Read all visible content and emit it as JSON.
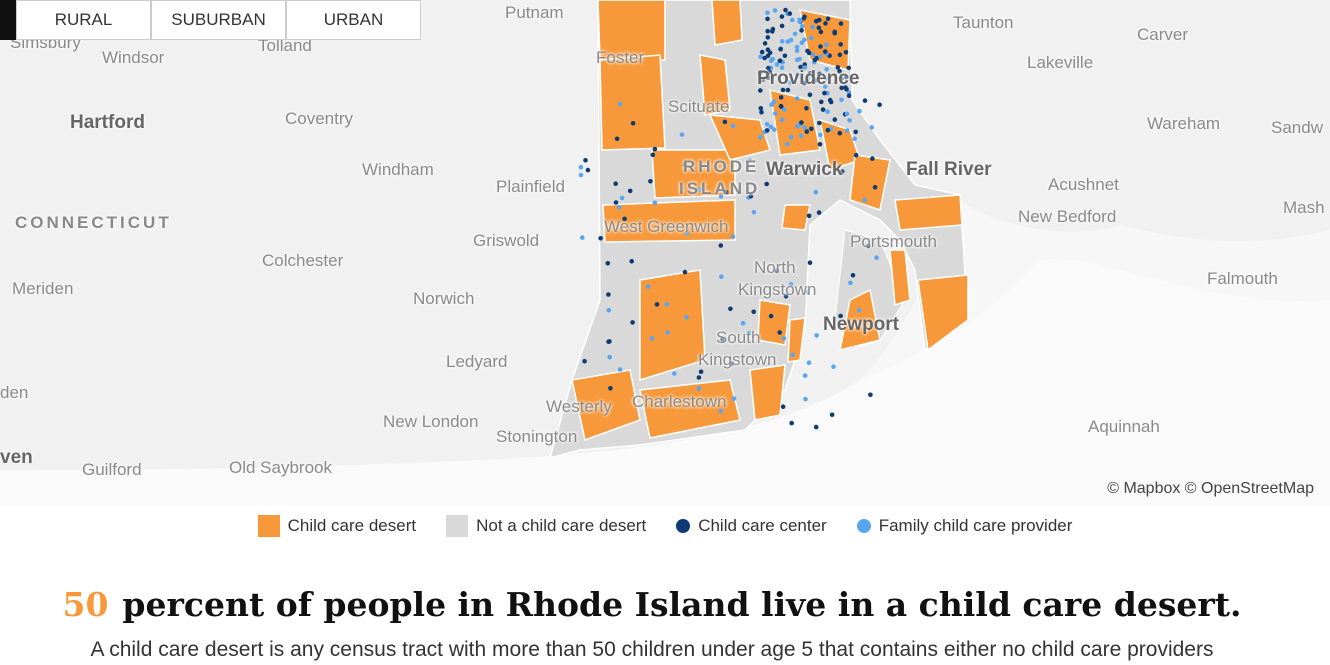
{
  "tabs": [
    "RURAL",
    "SUBURBAN",
    "URBAN"
  ],
  "map_labels": [
    "Putnam",
    "Taunton",
    "Carver",
    "Simsbury",
    "Windsor",
    "Tolland",
    "Lakeville",
    "Providence",
    "Foster",
    "Hartford",
    "Coventry",
    "Scituate",
    "Wareham",
    "Sandw",
    "Windham",
    "Plainfield",
    "RHODE",
    "ISLAND",
    "Warwick",
    "Fall River",
    "Acushnet",
    "CONNECTICUT",
    "New Bedford",
    "Mash",
    "West Greenwich",
    "Griswold",
    "Portsmouth",
    "Colchester",
    "North",
    "Kingstown",
    "Falmouth",
    "Meriden",
    "Norwich",
    "Newport",
    "South",
    "Kingstown",
    "Ledyard",
    "den",
    "Westerly",
    "Charlestown",
    "New London",
    "Stonington",
    "Aquinnah",
    "ven",
    "Guilford",
    "Old Saybrook"
  ],
  "attribution": "© Mapbox © OpenStreetMap",
  "legend": [
    "Child care desert",
    "Not a child care desert",
    "Child care center",
    "Family child care provider"
  ],
  "headline": {
    "number": "50",
    "text": "percent of people in Rhode Island live in a child care desert."
  },
  "description": "A child care desert is any census tract with more than 50 children under age 5 that contains either no child care providers"
}
